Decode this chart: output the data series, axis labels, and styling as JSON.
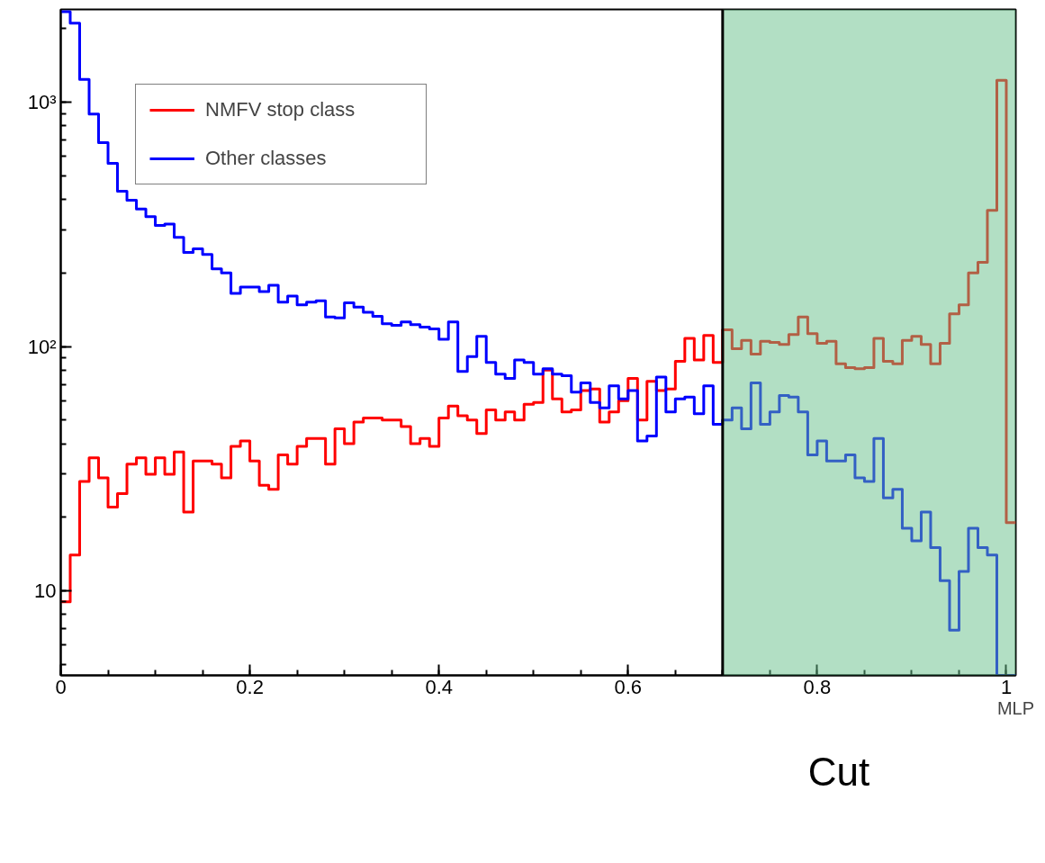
{
  "chart_data": {
    "type": "histogram",
    "xlabel": "MLP",
    "bins": [
      0,
      0.01,
      0.02,
      0.03,
      0.04,
      0.05,
      0.06,
      0.07,
      0.08,
      0.09,
      0.1,
      0.11,
      0.12,
      0.13,
      0.14,
      0.15,
      0.16,
      0.17,
      0.18,
      0.19,
      0.2,
      0.21,
      0.22,
      0.23,
      0.24,
      0.25,
      0.26,
      0.27,
      0.28,
      0.29,
      0.3,
      0.31,
      0.32,
      0.33,
      0.34,
      0.35,
      0.36,
      0.37,
      0.38,
      0.39,
      0.4,
      0.41,
      0.42,
      0.43,
      0.44,
      0.45,
      0.46,
      0.47,
      0.48,
      0.49,
      0.5,
      0.51,
      0.52,
      0.53,
      0.54,
      0.55,
      0.56,
      0.57,
      0.58,
      0.59,
      0.6,
      0.61,
      0.62,
      0.63,
      0.64,
      0.65,
      0.66,
      0.67,
      0.68,
      0.69,
      0.7,
      0.71,
      0.72,
      0.73,
      0.74,
      0.75,
      0.76,
      0.77,
      0.78,
      0.79,
      0.8,
      0.81,
      0.82,
      0.83,
      0.84,
      0.85,
      0.86,
      0.87,
      0.88,
      0.89,
      0.9,
      0.91,
      0.92,
      0.93,
      0.94,
      0.95,
      0.96,
      0.97,
      0.98,
      0.99,
      1.0,
      1.01
    ],
    "series": [
      {
        "name": "NMFV stop class",
        "color": "#ff0000",
        "values": [
          9,
          14,
          28,
          35,
          29,
          22,
          25,
          33,
          35,
          30,
          35,
          30,
          37,
          21,
          34,
          34,
          33,
          29,
          39,
          41,
          34,
          27,
          26,
          36,
          33,
          39,
          42,
          42,
          33,
          46,
          40,
          49,
          51,
          51,
          50,
          50,
          47,
          40,
          42,
          39,
          51,
          57,
          52,
          50,
          44,
          55,
          50,
          54,
          50,
          58,
          59,
          80,
          61,
          54,
          55,
          66,
          67,
          49,
          54,
          60,
          74,
          50,
          72,
          66,
          67,
          87,
          108,
          88,
          111,
          86,
          117,
          98,
          106,
          93,
          105,
          104,
          102,
          112,
          132,
          113,
          103,
          105,
          85,
          82,
          81,
          82,
          108,
          87,
          85,
          106,
          110,
          102,
          85,
          103,
          136,
          148,
          200,
          221,
          361,
          1230,
          19
        ]
      },
      {
        "name": "Other classes",
        "color": "#0000ff",
        "values": [
          2350,
          2110,
          1240,
          895,
          684,
          562,
          432,
          397,
          366,
          340,
          313,
          317,
          280,
          243,
          251,
          238,
          208,
          200,
          165,
          175,
          175,
          168,
          178,
          152,
          161,
          148,
          152,
          154,
          132,
          131,
          151,
          145,
          138,
          133,
          124,
          122,
          126,
          123,
          120,
          118,
          107,
          126,
          79,
          91,
          110,
          86,
          77,
          74,
          88,
          86,
          77,
          81,
          77,
          76,
          65,
          71,
          59,
          56,
          69,
          61,
          66,
          41,
          43,
          75,
          54,
          61,
          62,
          53,
          69,
          48,
          50,
          56,
          46,
          71,
          48,
          54,
          63,
          62,
          54,
          36,
          41,
          34,
          34,
          36,
          29,
          28,
          42,
          24,
          26,
          18,
          16,
          21,
          15,
          11,
          6.9,
          12,
          18,
          15,
          14,
          null,
          null
        ]
      }
    ],
    "xlim": [
      0,
      1.01
    ],
    "ylim": [
      4.5,
      2400
    ],
    "log": "y",
    "xticks": [
      0,
      0.2,
      0.4,
      0.6,
      0.8,
      1
    ],
    "yticks": [
      10,
      {
        "value": 100,
        "label": "10²"
      },
      {
        "value": 1000,
        "label": "10³"
      }
    ],
    "ref_lines": [
      {
        "axis": "x",
        "value": 0.7,
        "label": "Cut",
        "color": "#000000"
      }
    ],
    "bands": [
      {
        "axis": "x",
        "from": 0.7,
        "to": 1.01,
        "color": "#66bf8a"
      }
    ],
    "legend": "top left",
    "grid": false,
    "line_style": "solid",
    "marker": "none"
  }
}
